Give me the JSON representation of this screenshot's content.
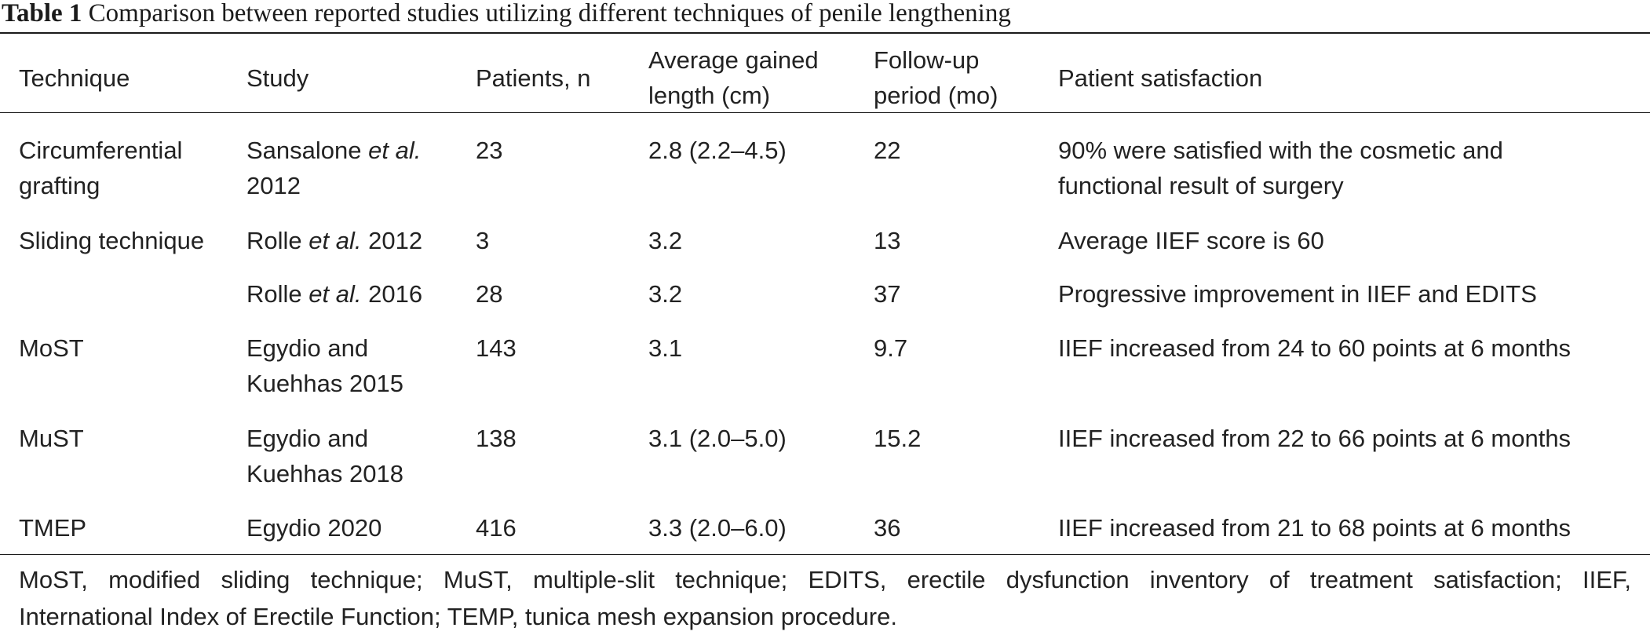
{
  "caption": {
    "label": "Table 1",
    "text": "Comparison between reported studies utilizing different techniques of penile lengthening"
  },
  "table": {
    "headers": {
      "technique": "Technique",
      "study": "Study",
      "patients": "Patients, n",
      "gained_1": "Average gained",
      "gained_2": "length (cm)",
      "followup_1": "Follow-up",
      "followup_2": "period (mo)",
      "satisfaction": "Patient satisfaction"
    },
    "rows": [
      {
        "technique_1": "Circumferential",
        "technique_2": "grafting",
        "study_pre": "Sansalone",
        "study_em": "et al.",
        "study_post": "",
        "study_2": "2012",
        "patients": "23",
        "gained": "2.8 (2.2–4.5)",
        "followup": "22",
        "satisfaction_1": "90% were satisfied with the cosmetic and",
        "satisfaction_2": "functional result of surgery"
      },
      {
        "technique_1": "Sliding technique",
        "technique_2": "",
        "study_pre": "Rolle",
        "study_em": "et al.",
        "study_post": "2012",
        "study_2": "",
        "patients": "3",
        "gained": "3.2",
        "followup": "13",
        "satisfaction_1": "Average IIEF score is 60",
        "satisfaction_2": ""
      },
      {
        "technique_1": "",
        "technique_2": "",
        "study_pre": "Rolle",
        "study_em": "et al.",
        "study_post": "2016",
        "study_2": "",
        "patients": "28",
        "gained": "3.2",
        "followup": "37",
        "satisfaction_1": "Progressive improvement in IIEF and EDITS",
        "satisfaction_2": ""
      },
      {
        "technique_1": "MoST",
        "technique_2": "",
        "study_pre": "Egydio and",
        "study_em": "",
        "study_post": "",
        "study_2": "Kuehhas 2015",
        "patients": "143",
        "gained": "3.1",
        "followup": "9.7",
        "satisfaction_1": "IIEF increased from 24 to 60 points at 6 months",
        "satisfaction_2": ""
      },
      {
        "technique_1": "MuST",
        "technique_2": "",
        "study_pre": "Egydio and",
        "study_em": "",
        "study_post": "",
        "study_2": "Kuehhas 2018",
        "patients": "138",
        "gained": "3.1 (2.0–5.0)",
        "followup": "15.2",
        "satisfaction_1": "IIEF increased from 22 to 66 points at 6 months",
        "satisfaction_2": ""
      },
      {
        "technique_1": "TMEP",
        "technique_2": "",
        "study_pre": "Egydio 2020",
        "study_em": "",
        "study_post": "",
        "study_2": "",
        "patients": "416",
        "gained": "3.3 (2.0–6.0)",
        "followup": "36",
        "satisfaction_1": "IIEF increased from 21 to 68 points at 6 months",
        "satisfaction_2": ""
      }
    ]
  },
  "footnote": {
    "line_1": "MoST, modified sliding technique; MuST, multiple-slit technique; EDITS, erectile dysfunction inventory of treatment satisfaction; IIEF,",
    "line_2": "International Index of Erectile Function; TEMP, tunica mesh expansion procedure."
  }
}
